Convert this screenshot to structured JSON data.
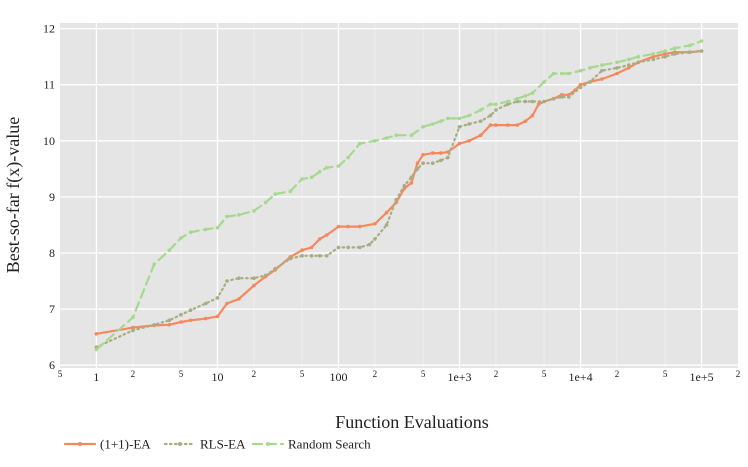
{
  "chart_data": {
    "type": "line",
    "xlabel": "Function Evaluations",
    "ylabel": "Best-so-far f(x)-value",
    "x_scale": "log",
    "xlim": [
      0.5,
      200000
    ],
    "ylim": [
      5.95,
      12.1
    ],
    "grid": true,
    "legend_position": "bottom-left",
    "x_major_ticks": [
      {
        "value": 1,
        "label": "1"
      },
      {
        "value": 10,
        "label": "10"
      },
      {
        "value": 100,
        "label": "100"
      },
      {
        "value": 1000,
        "label": "1e+3"
      },
      {
        "value": 10000,
        "label": "1e+4"
      },
      {
        "value": 100000,
        "label": "1e+5"
      }
    ],
    "x_minor_ticks": [
      {
        "value": 0.5,
        "label": "5"
      },
      {
        "value": 2,
        "label": "2"
      },
      {
        "value": 5,
        "label": "5"
      },
      {
        "value": 20,
        "label": "2"
      },
      {
        "value": 50,
        "label": "5"
      },
      {
        "value": 200,
        "label": "2"
      },
      {
        "value": 500,
        "label": "5"
      },
      {
        "value": 2000,
        "label": "2"
      },
      {
        "value": 5000,
        "label": "5"
      },
      {
        "value": 20000,
        "label": "2"
      },
      {
        "value": 50000,
        "label": "5"
      },
      {
        "value": 200000,
        "label": "2"
      }
    ],
    "y_ticks": [
      6,
      7,
      8,
      9,
      10,
      11,
      12
    ],
    "series": [
      {
        "name": "(1+1)-EA",
        "color": "#f4895f",
        "dash": "solid",
        "x": [
          1,
          2,
          3,
          4,
          5,
          6,
          8,
          10,
          12,
          15,
          20,
          25,
          30,
          40,
          50,
          60,
          70,
          80,
          100,
          120,
          150,
          200,
          250,
          300,
          350,
          400,
          450,
          500,
          600,
          700,
          800,
          1000,
          1200,
          1500,
          1800,
          2000,
          2500,
          3000,
          3500,
          4000,
          4500,
          5000,
          6000,
          7000,
          8000,
          9000,
          10000,
          12000,
          15000,
          20000,
          25000,
          30000,
          40000,
          50000,
          60000,
          80000,
          100000
        ],
        "y": [
          6.56,
          6.67,
          6.71,
          6.72,
          6.77,
          6.8,
          6.83,
          6.87,
          7.1,
          7.18,
          7.42,
          7.58,
          7.7,
          7.93,
          8.05,
          8.1,
          8.25,
          8.32,
          8.47,
          8.47,
          8.47,
          8.52,
          8.72,
          8.9,
          9.15,
          9.25,
          9.6,
          9.75,
          9.78,
          9.78,
          9.8,
          9.95,
          10.0,
          10.1,
          10.28,
          10.28,
          10.28,
          10.28,
          10.35,
          10.45,
          10.65,
          10.7,
          10.75,
          10.82,
          10.82,
          10.9,
          11.0,
          11.05,
          11.1,
          11.2,
          11.3,
          11.4,
          11.5,
          11.55,
          11.58,
          11.58,
          11.6
        ]
      },
      {
        "name": "RLS-EA",
        "color": "#a9ae82",
        "dash": "dotted",
        "x": [
          1,
          2,
          3,
          4,
          5,
          6,
          8,
          10,
          12,
          15,
          20,
          25,
          30,
          40,
          50,
          60,
          70,
          80,
          100,
          120,
          150,
          180,
          200,
          250,
          300,
          350,
          400,
          450,
          500,
          600,
          700,
          800,
          1000,
          1200,
          1500,
          1800,
          2000,
          2500,
          3000,
          3500,
          4000,
          5000,
          6000,
          7000,
          8000,
          10000,
          12000,
          15000,
          20000,
          25000,
          30000,
          40000,
          50000,
          60000,
          80000,
          100000
        ],
        "y": [
          6.32,
          6.62,
          6.72,
          6.8,
          6.9,
          6.98,
          7.1,
          7.2,
          7.5,
          7.55,
          7.55,
          7.6,
          7.72,
          7.9,
          7.95,
          7.95,
          7.95,
          7.95,
          8.1,
          8.1,
          8.1,
          8.15,
          8.25,
          8.5,
          8.95,
          9.2,
          9.35,
          9.5,
          9.6,
          9.6,
          9.65,
          9.7,
          10.25,
          10.3,
          10.35,
          10.45,
          10.55,
          10.65,
          10.7,
          10.7,
          10.7,
          10.7,
          10.75,
          10.78,
          10.78,
          10.95,
          11.05,
          11.25,
          11.3,
          11.35,
          11.4,
          11.45,
          11.5,
          11.55,
          11.58,
          11.6
        ]
      },
      {
        "name": "Random Search",
        "color": "#a6d98f",
        "dash": "dashed",
        "x": [
          1,
          2,
          3,
          4,
          5,
          6,
          8,
          10,
          12,
          15,
          20,
          25,
          30,
          40,
          50,
          60,
          70,
          80,
          100,
          120,
          150,
          200,
          250,
          300,
          400,
          500,
          600,
          700,
          800,
          1000,
          1200,
          1500,
          1800,
          2000,
          2500,
          3000,
          3500,
          4000,
          5000,
          6000,
          7000,
          8000,
          10000,
          12000,
          15000,
          20000,
          25000,
          30000,
          40000,
          50000,
          60000,
          80000,
          100000
        ],
        "y": [
          6.28,
          6.85,
          7.8,
          8.05,
          8.27,
          8.37,
          8.42,
          8.45,
          8.65,
          8.68,
          8.75,
          8.9,
          9.05,
          9.1,
          9.32,
          9.35,
          9.45,
          9.52,
          9.55,
          9.7,
          9.95,
          10.0,
          10.05,
          10.1,
          10.1,
          10.25,
          10.3,
          10.35,
          10.4,
          10.4,
          10.45,
          10.55,
          10.65,
          10.65,
          10.7,
          10.75,
          10.8,
          10.85,
          11.05,
          11.2,
          11.2,
          11.2,
          11.25,
          11.3,
          11.35,
          11.4,
          11.45,
          11.5,
          11.55,
          11.6,
          11.65,
          11.7,
          11.78
        ]
      }
    ]
  }
}
